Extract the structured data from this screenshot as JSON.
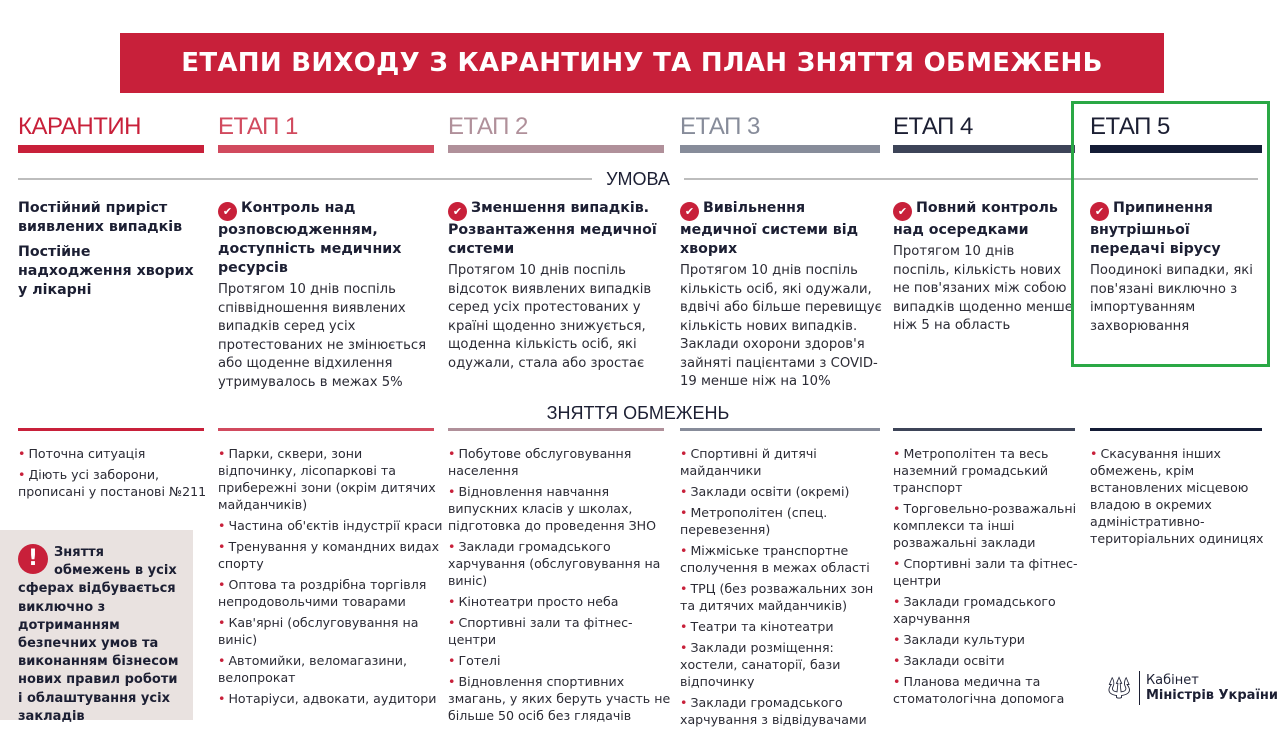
{
  "title": "ЕТАПИ ВИХОДУ З КАРАНТИНУ ТА ПЛАН ЗНЯТТЯ ОБМЕЖЕНЬ",
  "sections": {
    "condition": "УМОВА",
    "restrictions": "ЗНЯТТЯ ОБМЕЖЕНЬ"
  },
  "colors": {
    "brand": "#c8203a",
    "highlight": "#2aa845",
    "stages": [
      "#c8203a",
      "#d14a5e",
      "#b0909a",
      "#878c9a",
      "#3d4458",
      "#141c36"
    ]
  },
  "stages": [
    {
      "name": "КАРАНТИН",
      "heads": [
        "Постійний приріст виявлених випадків",
        "Постійне надходження хворих у лікарні"
      ],
      "text": "",
      "items": [
        "Поточна ситуація",
        "Діють усі заборони, прописані у постанові №211"
      ]
    },
    {
      "name": "ЕТАП 1",
      "heads": [
        "Контроль над розповсюдженням, доступність медичних ресурсів"
      ],
      "text": "Протягом 10 днів поспіль співвідношення виявлених випадків серед усіх протестованих не змінюється або щоденне відхилення утримувалось в межах 5%",
      "items": [
        "Парки, сквери, зони відпочинку, лісопаркові та прибережні зони (окрім дитячих майданчиків)",
        "Частина об'єктів індустрії краси",
        "Тренування у командних видах спорту",
        "Оптова та роздрібна торгівля непродовольчими товарами",
        "Кав'ярні (обслуговування на виніс)",
        "Автомийки, веломагазини, велопрокат",
        "Нотаріуси, адвокати, аудитори"
      ]
    },
    {
      "name": "ЕТАП 2",
      "heads": [
        "Зменшення випадків. Розвантаження медичної системи"
      ],
      "text": "Протягом 10 днів поспіль відсоток виявлених випадків серед усіх протестованих у країні щоденно знижується, щоденна кількість осіб, які одужали, стала або зростає",
      "items": [
        "Побутове обслуговування населення",
        "Відновлення навчання випускних класів у школах, підготовка до проведення ЗНО",
        "Заклади громадського харчування (обслуговування на виніс)",
        "Кінотеатри просто неба",
        "Спортивні зали та фітнес-центри",
        "Готелі",
        "Відновлення спортивних змагань, у яких беруть участь не більше 50 осіб без глядачів"
      ]
    },
    {
      "name": "ЕТАП 3",
      "heads": [
        "Вивільнення медичної системи від хворих"
      ],
      "text": "Протягом 10 днів поспіль кількість осіб, які одужали, вдвічі або більше перевищує кількість нових випадків. Заклади охорони здоров'я зайняті пацієнтами з COVID-19 менше ніж на 10%",
      "items": [
        "Спортивні й дитячі майданчики",
        "Заклади освіти (окремі)",
        "Метрополітен (спец. перевезення)",
        "Міжміське транспортне сполучення в межах області",
        "ТРЦ (без розважальних зон та дитячих майданчиків)",
        "Театри та кінотеатри",
        "Заклади розміщення: хостели, санаторії, бази відпочинку",
        "Заклади громадського харчування з відвідувачами"
      ]
    },
    {
      "name": "ЕТАП 4",
      "heads": [
        "Повний контроль над осередками"
      ],
      "text": "Протягом 10 днів поспіль, кількість нових не пов'язаних між собою випадків щоденно менше ніж 5 на область",
      "items": [
        "Метрополітен та весь наземний громадський транспорт",
        "Торговельно-розважальні комплекси та інші розважальні заклади",
        "Спортивні зали та фітнес-центри",
        "Заклади громадського харчування",
        "Заклади культури",
        "Заклади освіти",
        "Планова медична та стоматологічна допомога"
      ]
    },
    {
      "name": "ЕТАП 5",
      "heads": [
        "Припинення внутрішньої передачі вірусу"
      ],
      "text": "Поодинокі випадки, які пов'язані виключно з імпортуванням захворювання",
      "items": [
        "Скасування інших обмежень, крім встановлених місцевою владою в окремих адміністративно-територіальних одиницях"
      ]
    }
  ],
  "note": "Зняття обмежень в усіх сферах відбувається виключно з дотриманням безпечних умов та виконанням бізнесом нових правил роботи і облаштування усіх закладів",
  "logo": {
    "line1": "Кабінет",
    "line2": "Міністрів України",
    "icon": "trident-icon"
  }
}
